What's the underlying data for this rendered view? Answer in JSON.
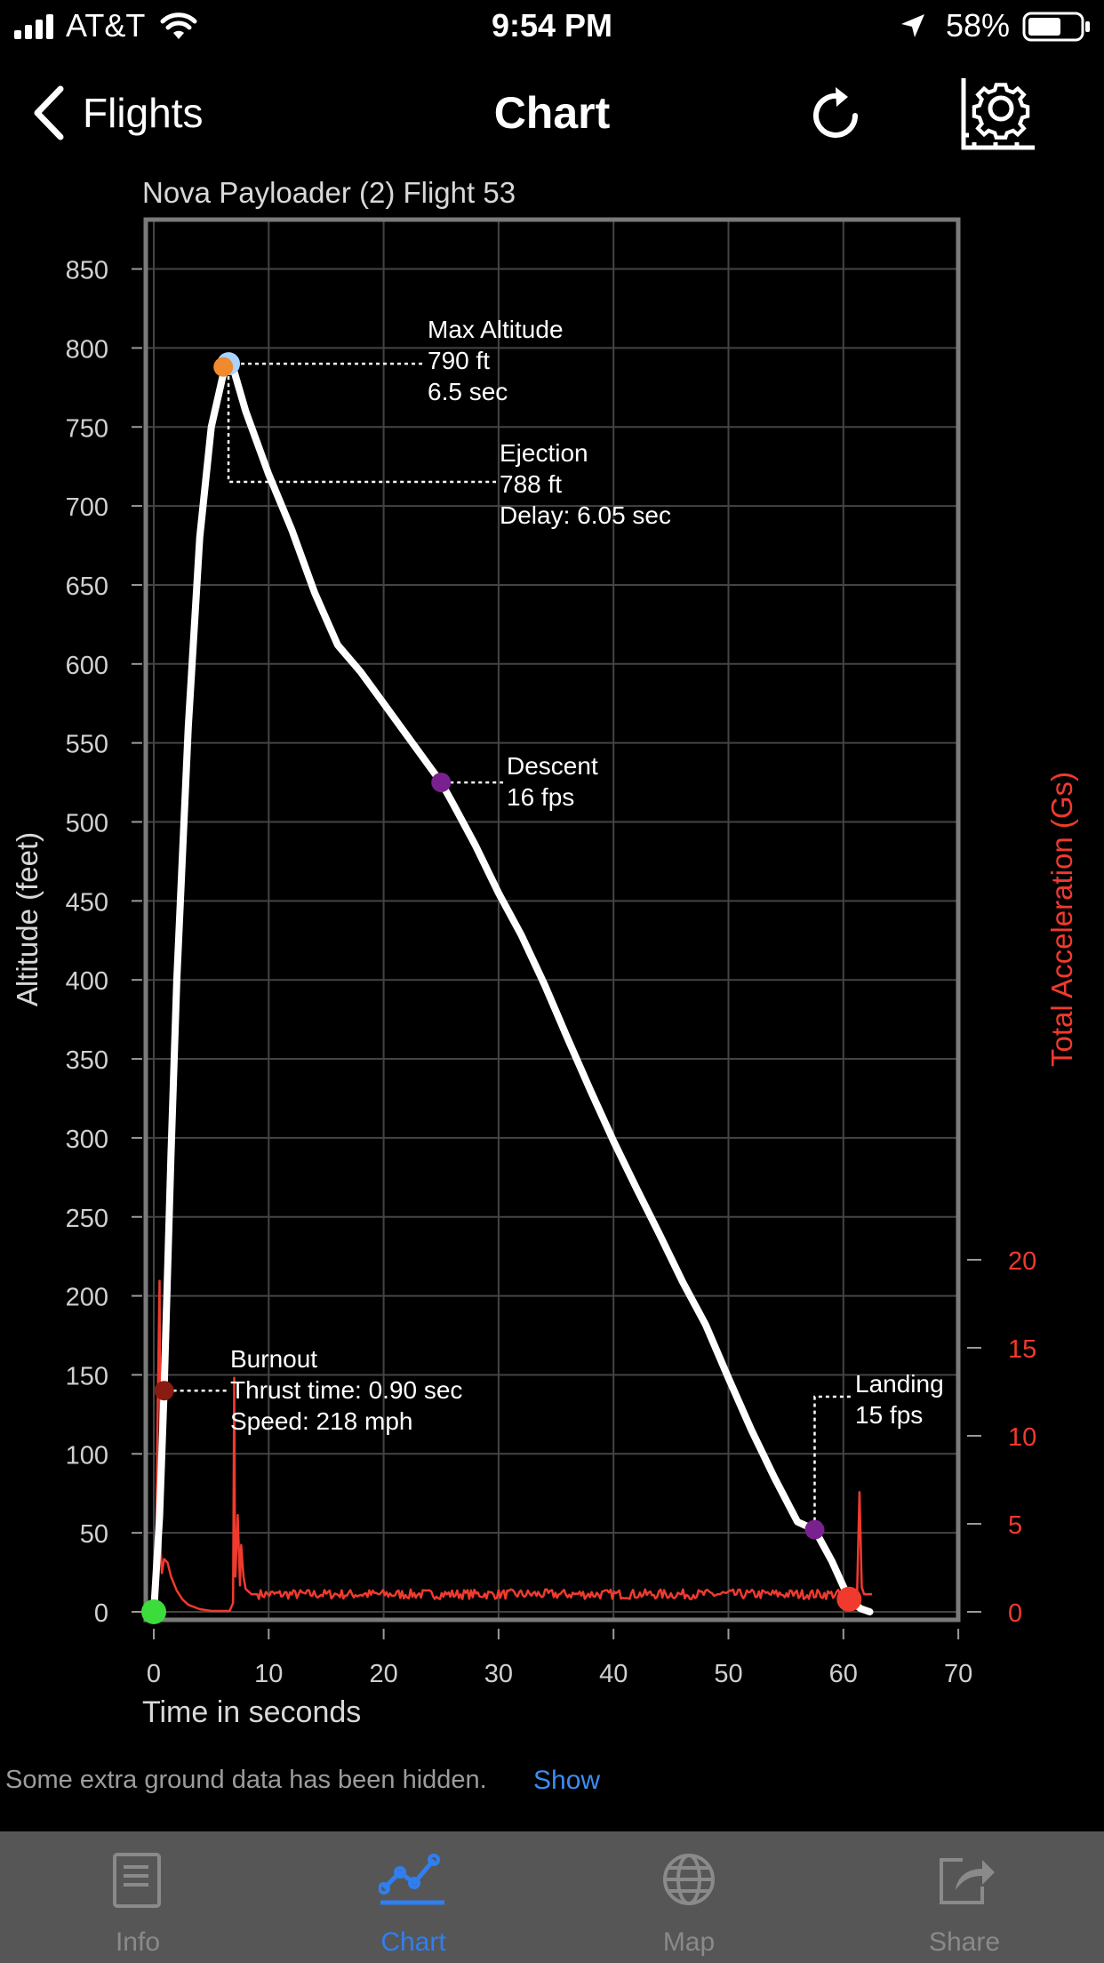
{
  "status_bar": {
    "carrier": "AT&T",
    "time": "9:54 PM",
    "battery": "58%"
  },
  "nav": {
    "back_label": "Flights",
    "title": "Chart",
    "refresh_icon": "refresh-icon",
    "settings_icon": "gear-icon"
  },
  "chart_data": {
    "type": "line",
    "title": "Nova Payloader (2) Flight 53",
    "xlabel": "Time in seconds",
    "ylabel": "Altitude (feet)",
    "y2label": "Total Acceleration (Gs)",
    "xlim": [
      0,
      70
    ],
    "ylim": [
      0,
      850
    ],
    "y2lim": [
      0,
      20
    ],
    "x_ticks": [
      "0",
      "10",
      "20",
      "30",
      "40",
      "50",
      "60",
      "70"
    ],
    "y_ticks": [
      "0",
      "50",
      "100",
      "150",
      "200",
      "250",
      "300",
      "350",
      "400",
      "450",
      "500",
      "550",
      "600",
      "650",
      "700",
      "750",
      "800",
      "850"
    ],
    "y2_ticks": [
      "0",
      "5",
      "10",
      "15",
      "20"
    ],
    "grid": true,
    "series": [
      {
        "color": "#ffffff",
        "axis": "left",
        "x": [
          0,
          0.5,
          0.9,
          1.5,
          2,
          3,
          4,
          5,
          6,
          6.5,
          7,
          8,
          10,
          12,
          14,
          16,
          18,
          20,
          22,
          24,
          25,
          26,
          28,
          30,
          32,
          34,
          36,
          38,
          40,
          42,
          44,
          46,
          48,
          50,
          52,
          54,
          56,
          57.5,
          59,
          60.5,
          61.5,
          62.3
        ],
        "y": [
          0,
          60,
          140,
          290,
          400,
          560,
          680,
          750,
          782,
          790,
          785,
          760,
          720,
          685,
          645,
          612,
          595,
          575,
          555,
          535,
          525,
          512,
          485,
          455,
          428,
          397,
          363,
          330,
          298,
          268,
          239,
          209,
          182,
          148,
          115,
          85,
          57,
          52,
          32,
          8,
          2,
          0
        ]
      },
      {
        "color": "#f03a2e",
        "axis": "right",
        "x": [
          0,
          0.2,
          0.35,
          0.5,
          0.6,
          0.7,
          0.9,
          1.2,
          1.5,
          2,
          2.5,
          3,
          4,
          5,
          6.6,
          6.9,
          7.0,
          7.05,
          7.1,
          7.3,
          7.5,
          7.6,
          7.8,
          8.0,
          8.5,
          9,
          61,
          61.2,
          61.4,
          61.6,
          61.8,
          62,
          62.5
        ],
        "y": [
          1.0,
          3.0,
          12.0,
          18.8,
          3.5,
          2.2,
          3.0,
          2.8,
          2.0,
          1.2,
          0.7,
          0.4,
          0.15,
          0.05,
          0.05,
          0.5,
          13.3,
          4.5,
          2.0,
          5.5,
          1.5,
          3.8,
          2.0,
          1.3,
          1.0,
          1.0,
          1.0,
          1.2,
          6.8,
          1.4,
          1.0,
          1.0,
          1.0
        ]
      }
    ],
    "markers": [
      {
        "name": "launch",
        "x": 0,
        "y": 0,
        "color": "#3ddc3d"
      },
      {
        "name": "burnout",
        "x": 0.9,
        "y": 140,
        "color": "#8a1b12"
      },
      {
        "name": "max-altitude",
        "x": 6.5,
        "y": 790,
        "color": "#a8d4ff"
      },
      {
        "name": "ejection",
        "x": 6.05,
        "y": 788,
        "color": "#f08a2e"
      },
      {
        "name": "descent",
        "x": 25,
        "y": 525,
        "color": "#7a2190"
      },
      {
        "name": "landing-rate",
        "x": 57.5,
        "y": 52,
        "color": "#7a2190"
      },
      {
        "name": "landing",
        "x": 60.5,
        "y": 8,
        "color": "#f03a2e"
      }
    ],
    "annotations": [
      {
        "name": "max-altitude",
        "lines": [
          "Max Altitude",
          "790 ft",
          "6.5  sec"
        ]
      },
      {
        "name": "ejection",
        "lines": [
          "Ejection",
          "788 ft",
          "Delay:  6.05 sec"
        ]
      },
      {
        "name": "descent",
        "lines": [
          "Descent",
          "16 fps"
        ]
      },
      {
        "name": "burnout",
        "lines": [
          "Burnout",
          "Thrust time: 0.90 sec",
          "Speed: 218 mph"
        ]
      },
      {
        "name": "landing",
        "lines": [
          "Landing",
          "15 fps"
        ]
      }
    ]
  },
  "footer": {
    "note": "Some extra ground data has been hidden.",
    "show_link": "Show"
  },
  "tabs": [
    {
      "label": "Info",
      "icon": "info-document-icon",
      "active": false
    },
    {
      "label": "Chart",
      "icon": "chart-line-icon",
      "active": true
    },
    {
      "label": "Map",
      "icon": "globe-icon",
      "active": false
    },
    {
      "label": "Share",
      "icon": "share-icon",
      "active": false
    }
  ],
  "colors": {
    "accent": "#2f7ff0",
    "acceleration": "#f03a2e",
    "altitude": "#ffffff"
  }
}
